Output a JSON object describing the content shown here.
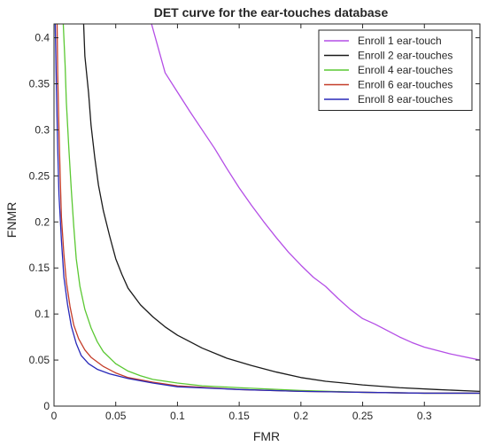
{
  "chart_data": {
    "type": "line",
    "title": "DET curve for the ear-touches database",
    "xlabel": "FMR",
    "ylabel": "FNMR",
    "xlim": [
      0,
      0.345
    ],
    "ylim": [
      0,
      0.415
    ],
    "xticks": [
      0,
      0.05,
      0.1,
      0.15,
      0.2,
      0.25,
      0.3
    ],
    "xtick_labels": [
      "0",
      "0.05",
      "0.1",
      "0.15",
      "0.2",
      "0.25",
      "0.3"
    ],
    "yticks": [
      0,
      0.05,
      0.1,
      0.15,
      0.2,
      0.25,
      0.3,
      0.35,
      0.4
    ],
    "ytick_labels": [
      "0",
      "0.05",
      "0.1",
      "0.15",
      "0.2",
      "0.25",
      "0.3",
      "0.35",
      "0.4"
    ],
    "grid": false,
    "legend_position": "top-right",
    "series": [
      {
        "name": "Enroll  1 ear-touch",
        "color": "#b44ee6",
        "points": [
          [
            0.079,
            0.415
          ],
          [
            0.09,
            0.362
          ],
          [
            0.1,
            0.341
          ],
          [
            0.11,
            0.32
          ],
          [
            0.12,
            0.3
          ],
          [
            0.13,
            0.28
          ],
          [
            0.14,
            0.258
          ],
          [
            0.15,
            0.237
          ],
          [
            0.16,
            0.218
          ],
          [
            0.17,
            0.2
          ],
          [
            0.18,
            0.183
          ],
          [
            0.19,
            0.167
          ],
          [
            0.2,
            0.153
          ],
          [
            0.21,
            0.14
          ],
          [
            0.22,
            0.13
          ],
          [
            0.23,
            0.117
          ],
          [
            0.24,
            0.105
          ],
          [
            0.25,
            0.095
          ],
          [
            0.26,
            0.089
          ],
          [
            0.27,
            0.082
          ],
          [
            0.28,
            0.075
          ],
          [
            0.29,
            0.069
          ],
          [
            0.3,
            0.064
          ],
          [
            0.32,
            0.057
          ],
          [
            0.345,
            0.05
          ]
        ]
      },
      {
        "name": "Enroll  2 ear-touches",
        "color": "#1a1a1a",
        "points": [
          [
            0.024,
            0.415
          ],
          [
            0.025,
            0.38
          ],
          [
            0.028,
            0.34
          ],
          [
            0.03,
            0.305
          ],
          [
            0.033,
            0.27
          ],
          [
            0.036,
            0.24
          ],
          [
            0.04,
            0.212
          ],
          [
            0.045,
            0.185
          ],
          [
            0.05,
            0.16
          ],
          [
            0.055,
            0.143
          ],
          [
            0.06,
            0.128
          ],
          [
            0.07,
            0.11
          ],
          [
            0.08,
            0.097
          ],
          [
            0.09,
            0.086
          ],
          [
            0.1,
            0.077
          ],
          [
            0.12,
            0.063
          ],
          [
            0.14,
            0.052
          ],
          [
            0.16,
            0.044
          ],
          [
            0.18,
            0.037
          ],
          [
            0.2,
            0.031
          ],
          [
            0.22,
            0.027
          ],
          [
            0.25,
            0.023
          ],
          [
            0.28,
            0.02
          ],
          [
            0.31,
            0.018
          ],
          [
            0.345,
            0.016
          ]
        ]
      },
      {
        "name": "Enroll  4 ear-touches",
        "color": "#5ac832",
        "points": [
          [
            0.0075,
            0.415
          ],
          [
            0.009,
            0.37
          ],
          [
            0.01,
            0.33
          ],
          [
            0.012,
            0.28
          ],
          [
            0.014,
            0.235
          ],
          [
            0.016,
            0.195
          ],
          [
            0.018,
            0.16
          ],
          [
            0.021,
            0.13
          ],
          [
            0.025,
            0.105
          ],
          [
            0.03,
            0.085
          ],
          [
            0.035,
            0.07
          ],
          [
            0.04,
            0.059
          ],
          [
            0.05,
            0.046
          ],
          [
            0.06,
            0.038
          ],
          [
            0.07,
            0.033
          ],
          [
            0.08,
            0.029
          ],
          [
            0.1,
            0.025
          ],
          [
            0.12,
            0.022
          ],
          [
            0.15,
            0.02
          ],
          [
            0.2,
            0.017
          ],
          [
            0.25,
            0.015
          ],
          [
            0.3,
            0.014
          ],
          [
            0.345,
            0.014
          ]
        ]
      },
      {
        "name": "Enroll  6 ear-touches",
        "color": "#c43c28",
        "points": [
          [
            0.0025,
            0.415
          ],
          [
            0.003,
            0.36
          ],
          [
            0.004,
            0.3
          ],
          [
            0.005,
            0.25
          ],
          [
            0.006,
            0.205
          ],
          [
            0.008,
            0.165
          ],
          [
            0.01,
            0.135
          ],
          [
            0.013,
            0.108
          ],
          [
            0.016,
            0.088
          ],
          [
            0.02,
            0.073
          ],
          [
            0.025,
            0.061
          ],
          [
            0.03,
            0.053
          ],
          [
            0.04,
            0.043
          ],
          [
            0.05,
            0.036
          ],
          [
            0.06,
            0.031
          ],
          [
            0.08,
            0.026
          ],
          [
            0.1,
            0.022
          ],
          [
            0.15,
            0.018
          ],
          [
            0.2,
            0.016
          ],
          [
            0.25,
            0.015
          ],
          [
            0.3,
            0.014
          ],
          [
            0.345,
            0.014
          ]
        ]
      },
      {
        "name": "Enroll  8 ear-touches",
        "color": "#2828b8",
        "points": [
          [
            0.001,
            0.415
          ],
          [
            0.002,
            0.34
          ],
          [
            0.003,
            0.28
          ],
          [
            0.004,
            0.23
          ],
          [
            0.006,
            0.18
          ],
          [
            0.008,
            0.14
          ],
          [
            0.011,
            0.11
          ],
          [
            0.014,
            0.087
          ],
          [
            0.018,
            0.068
          ],
          [
            0.022,
            0.055
          ],
          [
            0.028,
            0.046
          ],
          [
            0.035,
            0.04
          ],
          [
            0.045,
            0.035
          ],
          [
            0.06,
            0.03
          ],
          [
            0.08,
            0.025
          ],
          [
            0.1,
            0.021
          ],
          [
            0.15,
            0.018
          ],
          [
            0.2,
            0.016
          ],
          [
            0.25,
            0.015
          ],
          [
            0.3,
            0.014
          ],
          [
            0.345,
            0.014
          ]
        ]
      }
    ]
  }
}
